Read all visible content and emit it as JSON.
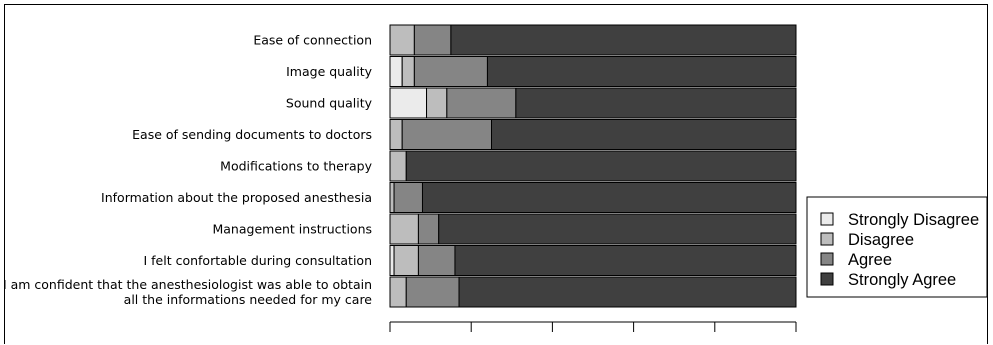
{
  "chart_data": {
    "type": "bar",
    "orientation": "horizontal",
    "stacked": true,
    "categories": [
      "Ease of connection",
      "Image quality",
      "Sound quality",
      "Ease of sending documents to doctors",
      "Modifications to therapy",
      "Information about the proposed anesthesia",
      "Management instructions",
      "I felt confortable during consultation",
      "I am confident that the anesthesiologist was able to obtain all the informations needed for my care"
    ],
    "category_lines": [
      [
        "Ease of connection"
      ],
      [
        "Image quality"
      ],
      [
        "Sound quality"
      ],
      [
        "Ease of sending documents to doctors"
      ],
      [
        "Modifications to therapy"
      ],
      [
        "Information about the proposed anesthesia"
      ],
      [
        "Management instructions"
      ],
      [
        "I felt confortable during consultation"
      ],
      [
        "I am confident that the anesthesiologist was able to obtain",
        "all the informations needed for my care"
      ]
    ],
    "series": [
      {
        "name": "Strongly Disagree",
        "color": "#ebebeb",
        "values": [
          0,
          3,
          9,
          0,
          0,
          0,
          0,
          1,
          0
        ]
      },
      {
        "name": "Disagree",
        "color": "#bdbdbd",
        "values": [
          6,
          3,
          5,
          3,
          4,
          1,
          7,
          6,
          4
        ]
      },
      {
        "name": "Agree",
        "color": "#858585",
        "values": [
          9,
          18,
          17,
          22,
          0,
          7,
          5,
          9,
          13
        ]
      },
      {
        "name": "Strongly Agree",
        "color": "#404040",
        "values": [
          85,
          76,
          69,
          75,
          96,
          92,
          88,
          84,
          83
        ]
      }
    ],
    "xlim": [
      0,
      100
    ],
    "x_ticks": [
      0,
      20,
      40,
      60,
      80,
      100
    ],
    "xlabel": "",
    "ylabel": "",
    "legend_position": "right",
    "grid": false
  }
}
